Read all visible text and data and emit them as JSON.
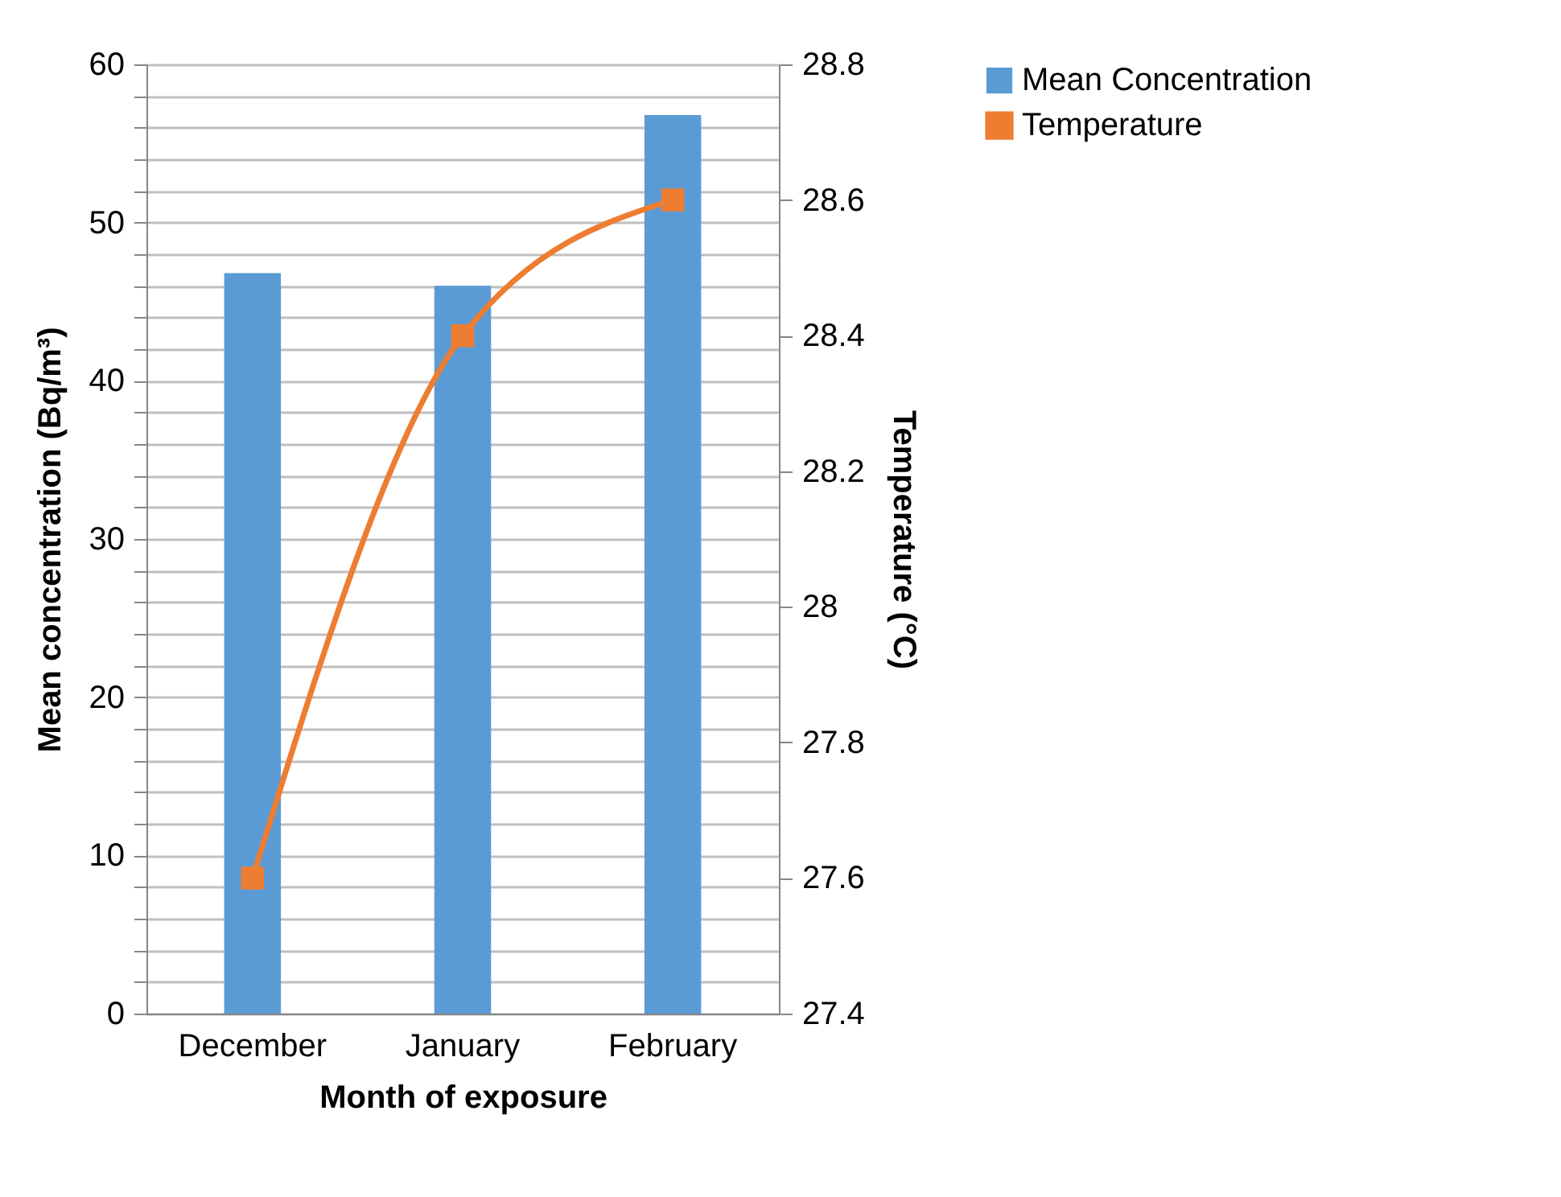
{
  "chart_data": {
    "type": "bar",
    "xlabel": "Month of exposure",
    "ylabel": "Mean concentration  (Bq/m³)",
    "y2label": "Temperature (°C)",
    "categories": [
      "December",
      "January",
      "February"
    ],
    "series": [
      {
        "name": "Mean Concentration",
        "color": "#5b9bd5",
        "values": [
          46.8,
          46.0,
          56.8
        ]
      },
      {
        "name": "Temperature",
        "type": "line",
        "axis": "y2",
        "color": "#ed7d31",
        "marker": "square",
        "values": [
          27.6,
          28.4,
          28.6
        ]
      }
    ],
    "ylim": [
      0,
      60
    ],
    "yticks": [
      0,
      {
        "value": 2,
        "label": null
      },
      {
        "value": 4,
        "label": null
      },
      {
        "value": 6,
        "label": null
      },
      {
        "value": 8,
        "label": null
      },
      10,
      {
        "value": 12,
        "label": null
      },
      {
        "value": 14,
        "label": null
      },
      {
        "value": 16,
        "label": null
      },
      {
        "value": 18,
        "label": null
      },
      20,
      {
        "value": 22,
        "label": null
      },
      {
        "value": 24,
        "label": null
      },
      {
        "value": 26,
        "label": null
      },
      {
        "value": 28,
        "label": null
      },
      30,
      {
        "value": 32,
        "label": null
      },
      {
        "value": 34,
        "label": null
      },
      {
        "value": 36,
        "label": null
      },
      {
        "value": 38,
        "label": null
      },
      40,
      {
        "value": 42,
        "label": null
      },
      {
        "value": 44,
        "label": null
      },
      {
        "value": 46,
        "label": null
      },
      {
        "value": 48,
        "label": null
      },
      50,
      {
        "value": 52,
        "label": null
      },
      {
        "value": 54,
        "label": null
      },
      {
        "value": 56,
        "label": null
      },
      {
        "value": 58,
        "label": null
      },
      60
    ],
    "y2lim": [
      27.4,
      28.8
    ],
    "y2ticks": [
      27.4,
      27.6,
      27.8,
      28,
      28.2,
      28.4,
      28.6,
      28.8
    ],
    "grid": "y",
    "legend": "right"
  }
}
